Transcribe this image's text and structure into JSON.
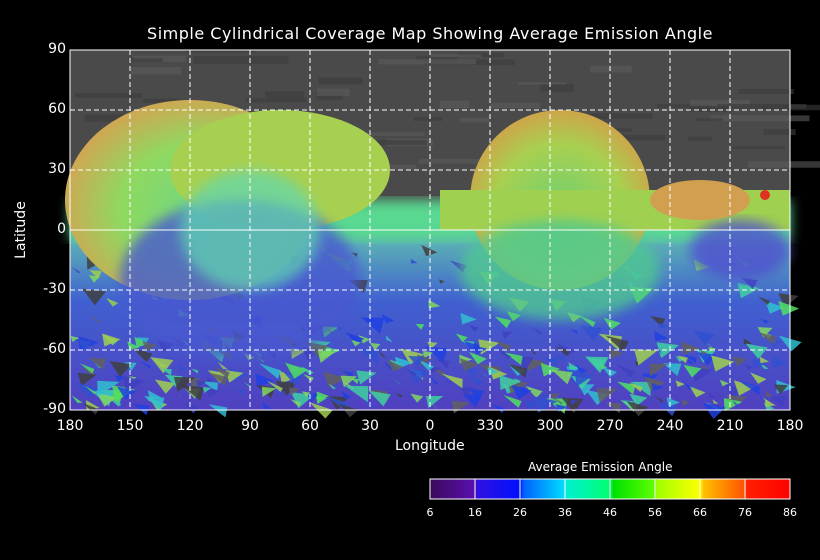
{
  "chart_data": {
    "type": "heatmap",
    "title": "Simple Cylindrical Coverage Map Showing Average Emission Angle",
    "xlabel": "Longitude",
    "ylabel": "Latitude",
    "xlim": [
      180,
      -180
    ],
    "ylim": [
      -90,
      90
    ],
    "x_tick_labels": [
      "180",
      "150",
      "120",
      "90",
      "60",
      "30",
      "0",
      "330",
      "300",
      "270",
      "240",
      "210",
      "180"
    ],
    "y_tick_labels": [
      "90",
      "60",
      "30",
      "0",
      "-30",
      "-60",
      "-90"
    ],
    "grid": true,
    "colorbar": {
      "title": "Average Emission Angle",
      "range": [
        6,
        86
      ],
      "tick_labels": [
        "6",
        "16",
        "26",
        "36",
        "46",
        "56",
        "66",
        "76",
        "86"
      ],
      "colors": [
        "#3a0a5a",
        "#5a10b0",
        "#0a10ff",
        "#0080ff",
        "#00f0f0",
        "#00ff80",
        "#00ff00",
        "#a0ff00",
        "#ffff00",
        "#ffa000",
        "#ff4000",
        "#ff0000"
      ]
    },
    "background_color": "#555555"
  }
}
